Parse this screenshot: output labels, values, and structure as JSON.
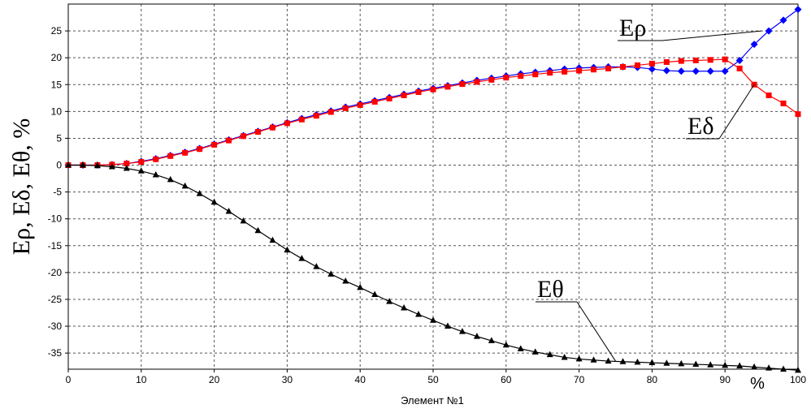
{
  "chart_data": {
    "type": "line",
    "title": "",
    "xlabel": "Элемент №1",
    "ylabel": "Eρ, Eδ, Eθ, %",
    "x_unit_label": "%",
    "xlim": [
      0,
      100
    ],
    "ylim": [
      -38,
      30
    ],
    "x_ticks": [
      0,
      10,
      20,
      30,
      40,
      50,
      60,
      70,
      80,
      90,
      100
    ],
    "y_ticks": [
      25,
      20,
      15,
      10,
      5,
      0,
      -5,
      -10,
      -15,
      -20,
      -25,
      -30,
      -35
    ],
    "grid": true,
    "series": [
      {
        "name": "Eρ",
        "color": "#0000ff",
        "marker": "diamond",
        "x": [
          0,
          2,
          4,
          6,
          8,
          10,
          12,
          14,
          16,
          18,
          20,
          22,
          24,
          26,
          28,
          30,
          32,
          34,
          36,
          38,
          40,
          42,
          44,
          46,
          48,
          50,
          52,
          54,
          56,
          58,
          60,
          62,
          64,
          66,
          68,
          70,
          72,
          74,
          76,
          78,
          80,
          82,
          84,
          86,
          88,
          90,
          92,
          94,
          96,
          98,
          100
        ],
        "y": [
          0,
          0,
          0,
          0.1,
          0.3,
          0.7,
          1.2,
          1.8,
          2.4,
          3.1,
          3.9,
          4.7,
          5.5,
          6.3,
          7.1,
          7.9,
          8.7,
          9.4,
          10.1,
          10.8,
          11.4,
          12,
          12.6,
          13.2,
          13.8,
          14.3,
          14.8,
          15.3,
          15.8,
          16.2,
          16.6,
          17,
          17.3,
          17.6,
          17.9,
          18.1,
          18.2,
          18.3,
          18.3,
          18.2,
          17.9,
          17.6,
          17.5,
          17.5,
          17.5,
          17.5,
          19.5,
          22.5,
          25,
          27,
          29
        ]
      },
      {
        "name": "Eδ",
        "color": "#ff0000",
        "marker": "square",
        "x": [
          0,
          2,
          4,
          6,
          8,
          10,
          12,
          14,
          16,
          18,
          20,
          22,
          24,
          26,
          28,
          30,
          32,
          34,
          36,
          38,
          40,
          42,
          44,
          46,
          48,
          50,
          52,
          54,
          56,
          58,
          60,
          62,
          64,
          66,
          68,
          70,
          72,
          74,
          76,
          78,
          80,
          82,
          84,
          86,
          88,
          90,
          92,
          94,
          96,
          98,
          100
        ],
        "y": [
          0,
          0,
          0,
          0.1,
          0.3,
          0.6,
          1.1,
          1.7,
          2.3,
          3,
          3.8,
          4.6,
          5.4,
          6.2,
          7,
          7.8,
          8.5,
          9.2,
          9.9,
          10.6,
          11.2,
          11.8,
          12.4,
          13,
          13.6,
          14.1,
          14.6,
          15.1,
          15.5,
          15.9,
          16.3,
          16.6,
          16.9,
          17.2,
          17.4,
          17.6,
          17.8,
          18,
          18.3,
          18.6,
          18.9,
          19.2,
          19.4,
          19.5,
          19.6,
          19.7,
          18,
          15,
          13,
          11.5,
          9.5
        ]
      },
      {
        "name": "Eθ",
        "color": "#000000",
        "marker": "triangle",
        "x": [
          0,
          2,
          4,
          6,
          8,
          10,
          12,
          14,
          16,
          18,
          20,
          22,
          24,
          26,
          28,
          30,
          32,
          34,
          36,
          38,
          40,
          42,
          44,
          46,
          48,
          50,
          52,
          54,
          56,
          58,
          60,
          62,
          64,
          66,
          68,
          70,
          72,
          74,
          76,
          78,
          80,
          82,
          84,
          86,
          88,
          90,
          92,
          94,
          96,
          98,
          100
        ],
        "y": [
          0,
          0,
          -0.1,
          -0.3,
          -0.6,
          -1.1,
          -1.8,
          -2.7,
          -3.9,
          -5.3,
          -6.9,
          -8.6,
          -10.4,
          -12.2,
          -14,
          -15.8,
          -17.4,
          -18.9,
          -20.3,
          -21.6,
          -22.8,
          -24.1,
          -25.4,
          -26.6,
          -27.8,
          -28.9,
          -30,
          -31,
          -31.9,
          -32.7,
          -33.5,
          -34.2,
          -34.8,
          -35.3,
          -35.8,
          -36.1,
          -36.3,
          -36.5,
          -36.6,
          -36.7,
          -36.8,
          -36.9,
          -37,
          -37.1,
          -37.2,
          -37.3,
          -37.4,
          -37.6,
          -37.8,
          -38,
          -38.2
        ]
      }
    ],
    "annotations": [
      {
        "series": "Eρ",
        "text": "Eρ",
        "x": 95,
        "y": 25
      },
      {
        "series": "Eδ",
        "text": "Eδ",
        "x": 94,
        "y": 15
      },
      {
        "series": "Eθ",
        "text": "Eθ",
        "x": 75,
        "y": -36.5
      }
    ]
  }
}
